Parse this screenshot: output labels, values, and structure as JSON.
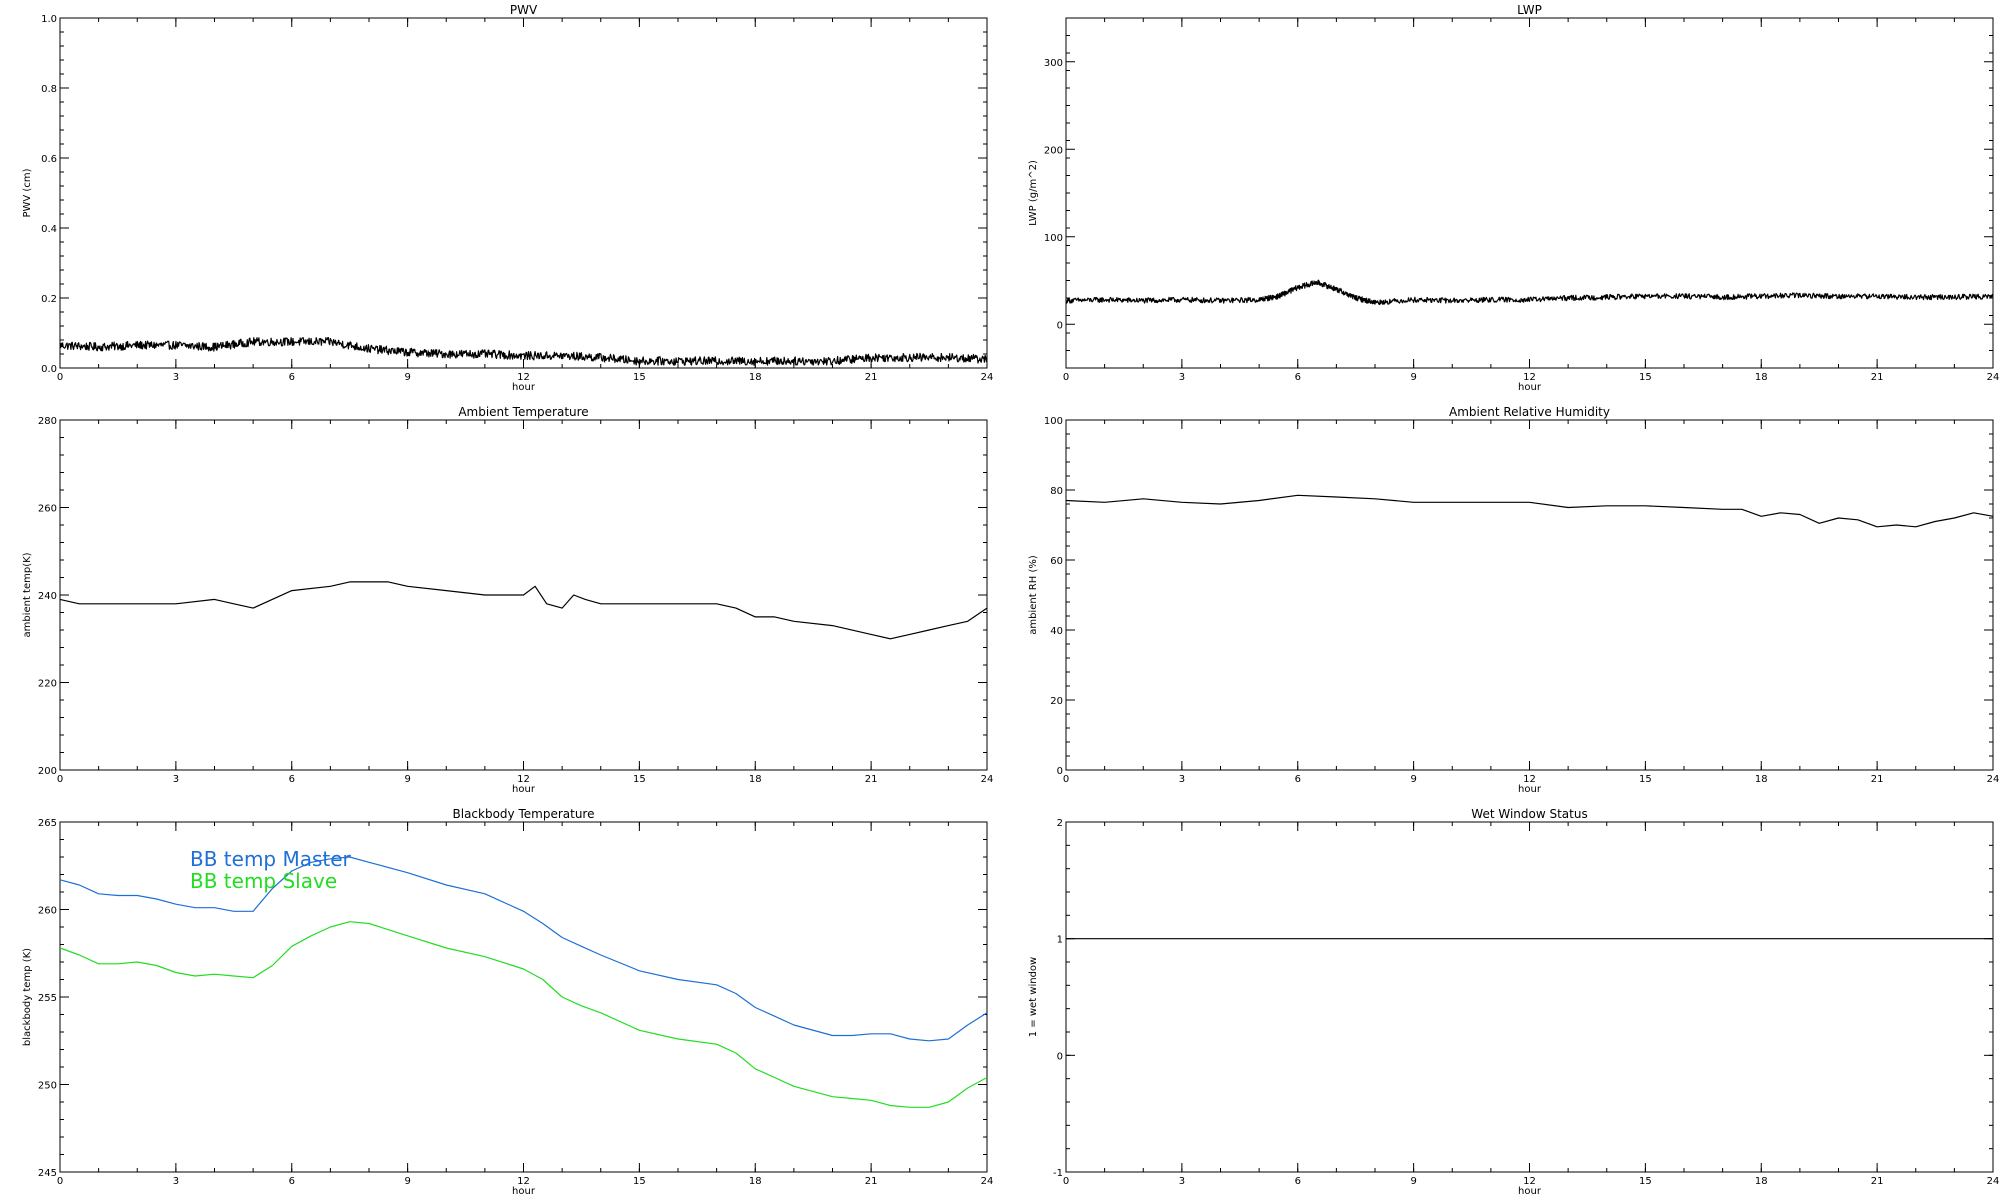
{
  "chart_data": [
    {
      "type": "line",
      "title": "PWV",
      "xlabel": "hour",
      "ylabel": "PWV (cm)",
      "xlim": [
        0,
        24
      ],
      "ylim": [
        0.0,
        1.0
      ],
      "xticks": [
        "0",
        "3",
        "6",
        "9",
        "12",
        "15",
        "18",
        "21",
        "24"
      ],
      "yticks": [
        "0.0",
        "0.2",
        "0.4",
        "0.6",
        "0.8",
        "1.0"
      ],
      "noise": 0.012,
      "series": [
        {
          "color": "#000000",
          "x": [
            0,
            1,
            2,
            3,
            4,
            5,
            6,
            7,
            8,
            9,
            10,
            11,
            12,
            13,
            14,
            15,
            16,
            17,
            18,
            19,
            20,
            21,
            22,
            23,
            24
          ],
          "y": [
            0.065,
            0.06,
            0.065,
            0.065,
            0.06,
            0.075,
            0.075,
            0.075,
            0.055,
            0.045,
            0.04,
            0.04,
            0.035,
            0.035,
            0.03,
            0.02,
            0.02,
            0.02,
            0.02,
            0.02,
            0.02,
            0.03,
            0.03,
            0.03,
            0.025
          ]
        }
      ]
    },
    {
      "type": "line",
      "title": "LWP",
      "xlabel": "hour",
      "ylabel": "LWP (g/m^2)",
      "xlim": [
        0,
        24
      ],
      "ylim": [
        -50,
        350
      ],
      "xticks": [
        "0",
        "3",
        "6",
        "9",
        "12",
        "15",
        "18",
        "21",
        "24"
      ],
      "yticks": [
        "0",
        "100",
        "200",
        "300"
      ],
      "noise": 3,
      "series": [
        {
          "color": "#000000",
          "x": [
            0,
            1,
            2,
            3,
            4,
            5,
            5.5,
            6,
            6.5,
            7,
            7.5,
            8,
            9,
            10,
            11,
            12,
            13,
            14,
            15,
            16,
            17,
            18,
            19,
            20,
            21,
            22,
            23,
            24
          ],
          "y": [
            27,
            28,
            27,
            28,
            27,
            28,
            32,
            42,
            48,
            40,
            30,
            25,
            28,
            27,
            28,
            28,
            30,
            31,
            32,
            32,
            31,
            32,
            33,
            32,
            32,
            31,
            31,
            32
          ]
        }
      ]
    },
    {
      "type": "line",
      "title": "Ambient Temperature",
      "xlabel": "hour",
      "ylabel": "ambient temp(K)",
      "xlim": [
        0,
        24
      ],
      "ylim": [
        200,
        280
      ],
      "xticks": [
        "0",
        "3",
        "6",
        "9",
        "12",
        "15",
        "18",
        "21",
        "24"
      ],
      "yticks": [
        "200",
        "220",
        "240",
        "260",
        "280"
      ],
      "series": [
        {
          "color": "#000000",
          "x": [
            0,
            0.5,
            1,
            1.5,
            2,
            3,
            4,
            4.5,
            5,
            6,
            7,
            7.5,
            8,
            8.5,
            9,
            10,
            11,
            11.5,
            12,
            12.3,
            12.6,
            13,
            13.3,
            13.6,
            14,
            15,
            16,
            17,
            17.5,
            18,
            18.5,
            19,
            20,
            21,
            21.5,
            22,
            22.5,
            23,
            23.5,
            24
          ],
          "y": [
            239,
            238,
            238,
            238,
            238,
            238,
            239,
            238,
            237,
            241,
            242,
            243,
            243,
            243,
            242,
            241,
            240,
            240,
            240,
            242,
            238,
            237,
            240,
            239,
            238,
            238,
            238,
            238,
            237,
            235,
            235,
            234,
            233,
            231,
            230,
            231,
            232,
            233,
            234,
            237
          ]
        }
      ]
    },
    {
      "type": "line",
      "title": "Ambient Relative Humidity",
      "xlabel": "hour",
      "ylabel": "ambient RH (%)",
      "xlim": [
        0,
        24
      ],
      "ylim": [
        0,
        100
      ],
      "xticks": [
        "0",
        "3",
        "6",
        "9",
        "12",
        "15",
        "18",
        "21",
        "24"
      ],
      "yticks": [
        "0",
        "20",
        "40",
        "60",
        "80",
        "100"
      ],
      "series": [
        {
          "color": "#000000",
          "x": [
            0,
            1,
            2,
            3,
            4,
            5,
            6,
            7,
            8,
            9,
            10,
            11,
            12,
            13,
            14,
            15,
            16,
            17,
            17.5,
            18,
            18.5,
            19,
            19.5,
            20,
            20.5,
            21,
            21.5,
            22,
            22.5,
            23,
            23.5,
            24
          ],
          "y": [
            77,
            76.5,
            77.5,
            76.5,
            76,
            77,
            78.5,
            78,
            77.5,
            76.5,
            76.5,
            76.5,
            76.5,
            75,
            75.5,
            75.5,
            75,
            74.5,
            74.5,
            72.5,
            73.5,
            73,
            70.5,
            72,
            71.5,
            69.5,
            70,
            69.5,
            71,
            72,
            73.5,
            72.5
          ]
        }
      ]
    },
    {
      "type": "line",
      "title": "Blackbody Temperature",
      "xlabel": "hour",
      "ylabel": "blackbody temp (K)",
      "xlim": [
        0,
        24
      ],
      "ylim": [
        245,
        265
      ],
      "xticks": [
        "0",
        "3",
        "6",
        "9",
        "12",
        "15",
        "18",
        "21",
        "24"
      ],
      "yticks": [
        "245",
        "250",
        "255",
        "260",
        "265"
      ],
      "series": [
        {
          "name": "BB temp Master",
          "color": "#1f6fd6",
          "x": [
            0,
            0.5,
            1,
            1.5,
            2,
            2.5,
            3,
            3.5,
            4,
            4.5,
            5,
            5.5,
            6,
            6.5,
            7,
            7.5,
            8,
            9,
            10,
            11,
            12,
            12.5,
            13,
            13.5,
            14,
            15,
            16,
            17,
            17.5,
            18,
            18.5,
            19,
            20,
            20.5,
            21,
            21.5,
            22,
            22.5,
            23,
            23.5,
            24
          ],
          "y": [
            261.7,
            261.4,
            260.9,
            260.8,
            260.8,
            260.6,
            260.3,
            260.1,
            260.1,
            259.9,
            259.9,
            261.2,
            262.2,
            262.7,
            262.9,
            263.0,
            262.7,
            262.1,
            261.4,
            260.9,
            259.9,
            259.2,
            258.4,
            257.9,
            257.4,
            256.5,
            256.0,
            255.7,
            255.2,
            254.4,
            253.9,
            253.4,
            252.8,
            252.8,
            252.9,
            252.9,
            252.6,
            252.5,
            252.6,
            253.4,
            254.1
          ]
        },
        {
          "name": "BB temp Slave",
          "color": "#22dd22",
          "x": [
            0,
            0.5,
            1,
            1.5,
            2,
            2.5,
            3,
            3.5,
            4,
            4.5,
            5,
            5.5,
            6,
            6.5,
            7,
            7.5,
            8,
            9,
            10,
            11,
            12,
            12.5,
            13,
            13.5,
            14,
            15,
            16,
            17,
            17.5,
            18,
            18.5,
            19,
            20,
            20.5,
            21,
            21.5,
            22,
            22.5,
            23,
            23.5,
            24
          ],
          "y": [
            257.8,
            257.4,
            256.9,
            256.9,
            257.0,
            256.8,
            256.4,
            256.2,
            256.3,
            256.2,
            256.1,
            256.8,
            257.9,
            258.5,
            259.0,
            259.3,
            259.2,
            258.5,
            257.8,
            257.3,
            256.6,
            256.0,
            255.0,
            254.5,
            254.1,
            253.1,
            252.6,
            252.3,
            251.8,
            250.9,
            250.4,
            249.9,
            249.3,
            249.2,
            249.1,
            248.8,
            248.7,
            248.7,
            249.0,
            249.8,
            250.4
          ]
        }
      ]
    },
    {
      "type": "line",
      "title": "Wet Window Status",
      "xlabel": "hour",
      "ylabel": "1 = wet window",
      "xlim": [
        0,
        24
      ],
      "ylim": [
        -1,
        2
      ],
      "xticks": [
        "0",
        "3",
        "6",
        "9",
        "12",
        "15",
        "18",
        "21",
        "24"
      ],
      "yticks": [
        "-1",
        "0",
        "1",
        "2"
      ],
      "series": [
        {
          "color": "#000000",
          "x": [
            0,
            24
          ],
          "y": [
            1,
            1
          ]
        }
      ]
    }
  ]
}
